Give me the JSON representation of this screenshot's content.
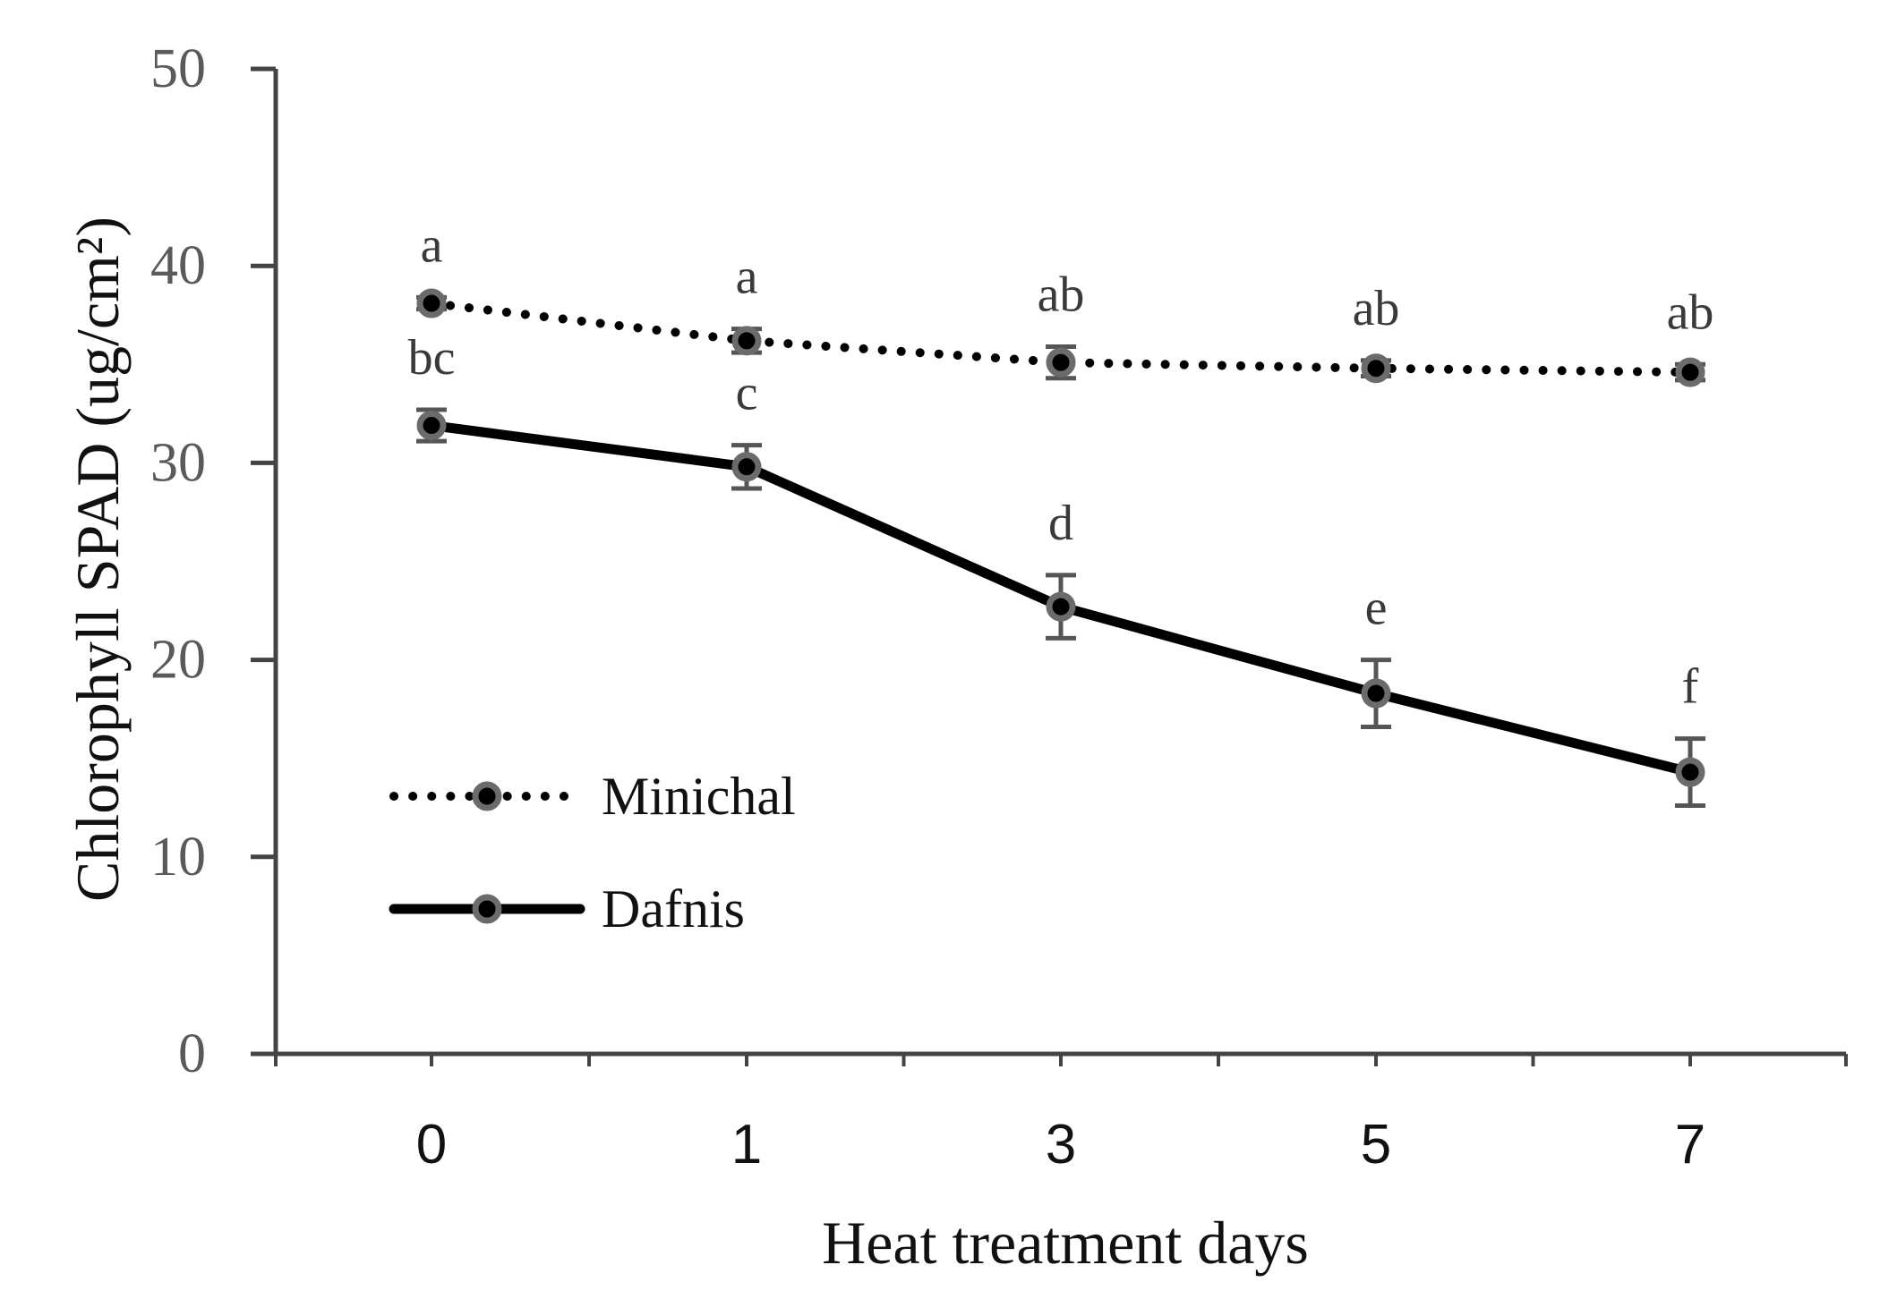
{
  "chart_data": {
    "type": "line",
    "title": "",
    "xlabel": "Heat treatment days",
    "ylabel": "Chlorophyll SPAD (ug/cm²)",
    "categories": [
      "0",
      "1",
      "3",
      "5",
      "7"
    ],
    "ylim": [
      0,
      50
    ],
    "yticks": [
      0,
      10,
      20,
      30,
      40,
      50
    ],
    "grid": false,
    "legend_position": "lower-left",
    "series": [
      {
        "name": "Minichal",
        "line_style": "dotted",
        "values": [
          38.1,
          36.2,
          35.1,
          34.8,
          34.6
        ],
        "errors": [
          0.3,
          0.6,
          0.8,
          0.4,
          0.4
        ],
        "letters": [
          "a",
          "a",
          "ab",
          "ab",
          "ab"
        ]
      },
      {
        "name": "Dafnis",
        "line_style": "solid",
        "values": [
          31.9,
          29.8,
          22.7,
          18.3,
          14.3
        ],
        "errors": [
          0.8,
          1.1,
          1.6,
          1.7,
          1.7
        ],
        "letters": [
          "bc",
          "c",
          "d",
          "e",
          "f"
        ]
      }
    ]
  },
  "colors": {
    "axis": "#444444",
    "line": "#000000",
    "marker_fill": "#000000",
    "marker_ring": "#6b6b6b",
    "error_bar": "#555555"
  }
}
